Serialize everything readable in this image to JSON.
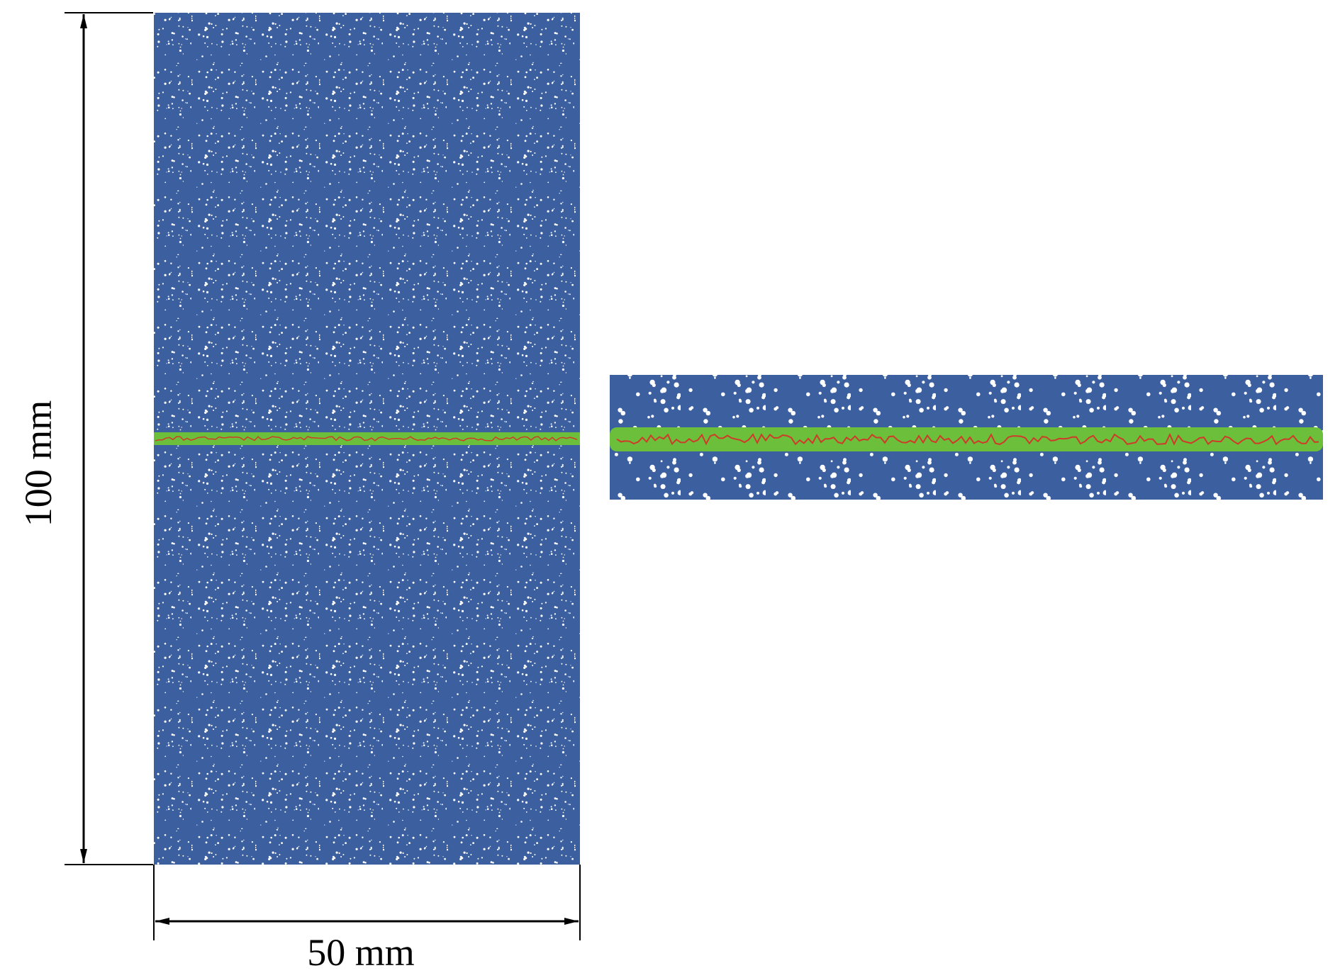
{
  "dimensions": {
    "height": "100 mm",
    "width": "50 mm"
  }
}
